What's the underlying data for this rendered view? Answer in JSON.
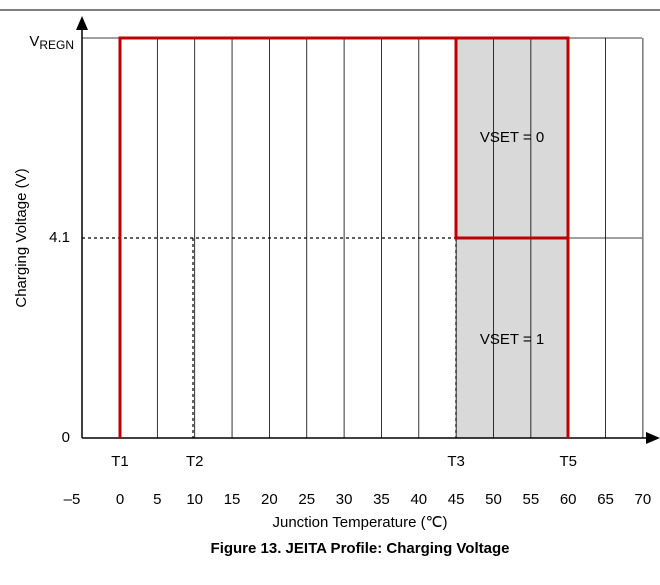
{
  "figure": {
    "title": "Figure 13. JEITA Profile: Charging Voltage",
    "x_axis_title": "Junction Temperature (℃)",
    "y_axis_title": "Charging Voltage (V)",
    "x_labels": [
      "–5",
      "0",
      "5",
      "10",
      "15",
      "20",
      "25",
      "30",
      "35",
      "40",
      "45",
      "50",
      "55",
      "60",
      "65",
      "70"
    ],
    "markers": [
      "T1",
      "T2",
      "T3",
      "T5"
    ],
    "y_labels": {
      "zero": "0",
      "mid": "4.1",
      "top": {
        "main": "V",
        "sub": "REGN"
      }
    },
    "regions": [
      "VSET = 0",
      "VSET = 1"
    ]
  }
}
